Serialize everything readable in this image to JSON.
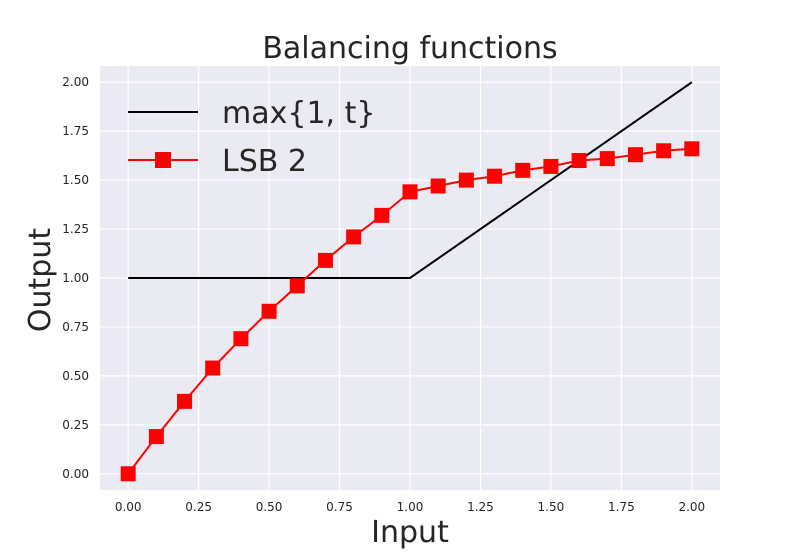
{
  "chart_data": {
    "type": "line",
    "title": "Balancing functions",
    "xlabel": "Input",
    "ylabel": "Output",
    "xlim": [
      -0.1,
      2.1
    ],
    "ylim": [
      -0.083,
      2.083
    ],
    "xticks": [
      "0.00",
      "0.25",
      "0.50",
      "0.75",
      "1.00",
      "1.25",
      "1.50",
      "1.75",
      "2.00"
    ],
    "yticks": [
      "0.00",
      "0.25",
      "0.50",
      "0.75",
      "1.00",
      "1.25",
      "1.50",
      "1.75",
      "2.00"
    ],
    "grid": true,
    "legend_position": "upper-left",
    "series": [
      {
        "name": "max{1, t}",
        "color": "#000000",
        "marker": "none",
        "x": [
          0.0,
          1.0,
          2.0
        ],
        "y": [
          1.0,
          1.0,
          2.0
        ]
      },
      {
        "name": "LSB 2",
        "color": "#ff0000",
        "marker": "square",
        "x": [
          0.0,
          0.1,
          0.2,
          0.3,
          0.4,
          0.5,
          0.6,
          0.7,
          0.8,
          0.9,
          1.0,
          1.1,
          1.2,
          1.3,
          1.4,
          1.5,
          1.6,
          1.7,
          1.8,
          1.9,
          2.0
        ],
        "y": [
          0.0,
          0.19,
          0.37,
          0.54,
          0.69,
          0.83,
          0.96,
          1.09,
          1.21,
          1.32,
          1.44,
          1.47,
          1.5,
          1.52,
          1.55,
          1.57,
          1.6,
          1.61,
          1.63,
          1.65,
          1.66
        ]
      }
    ]
  }
}
